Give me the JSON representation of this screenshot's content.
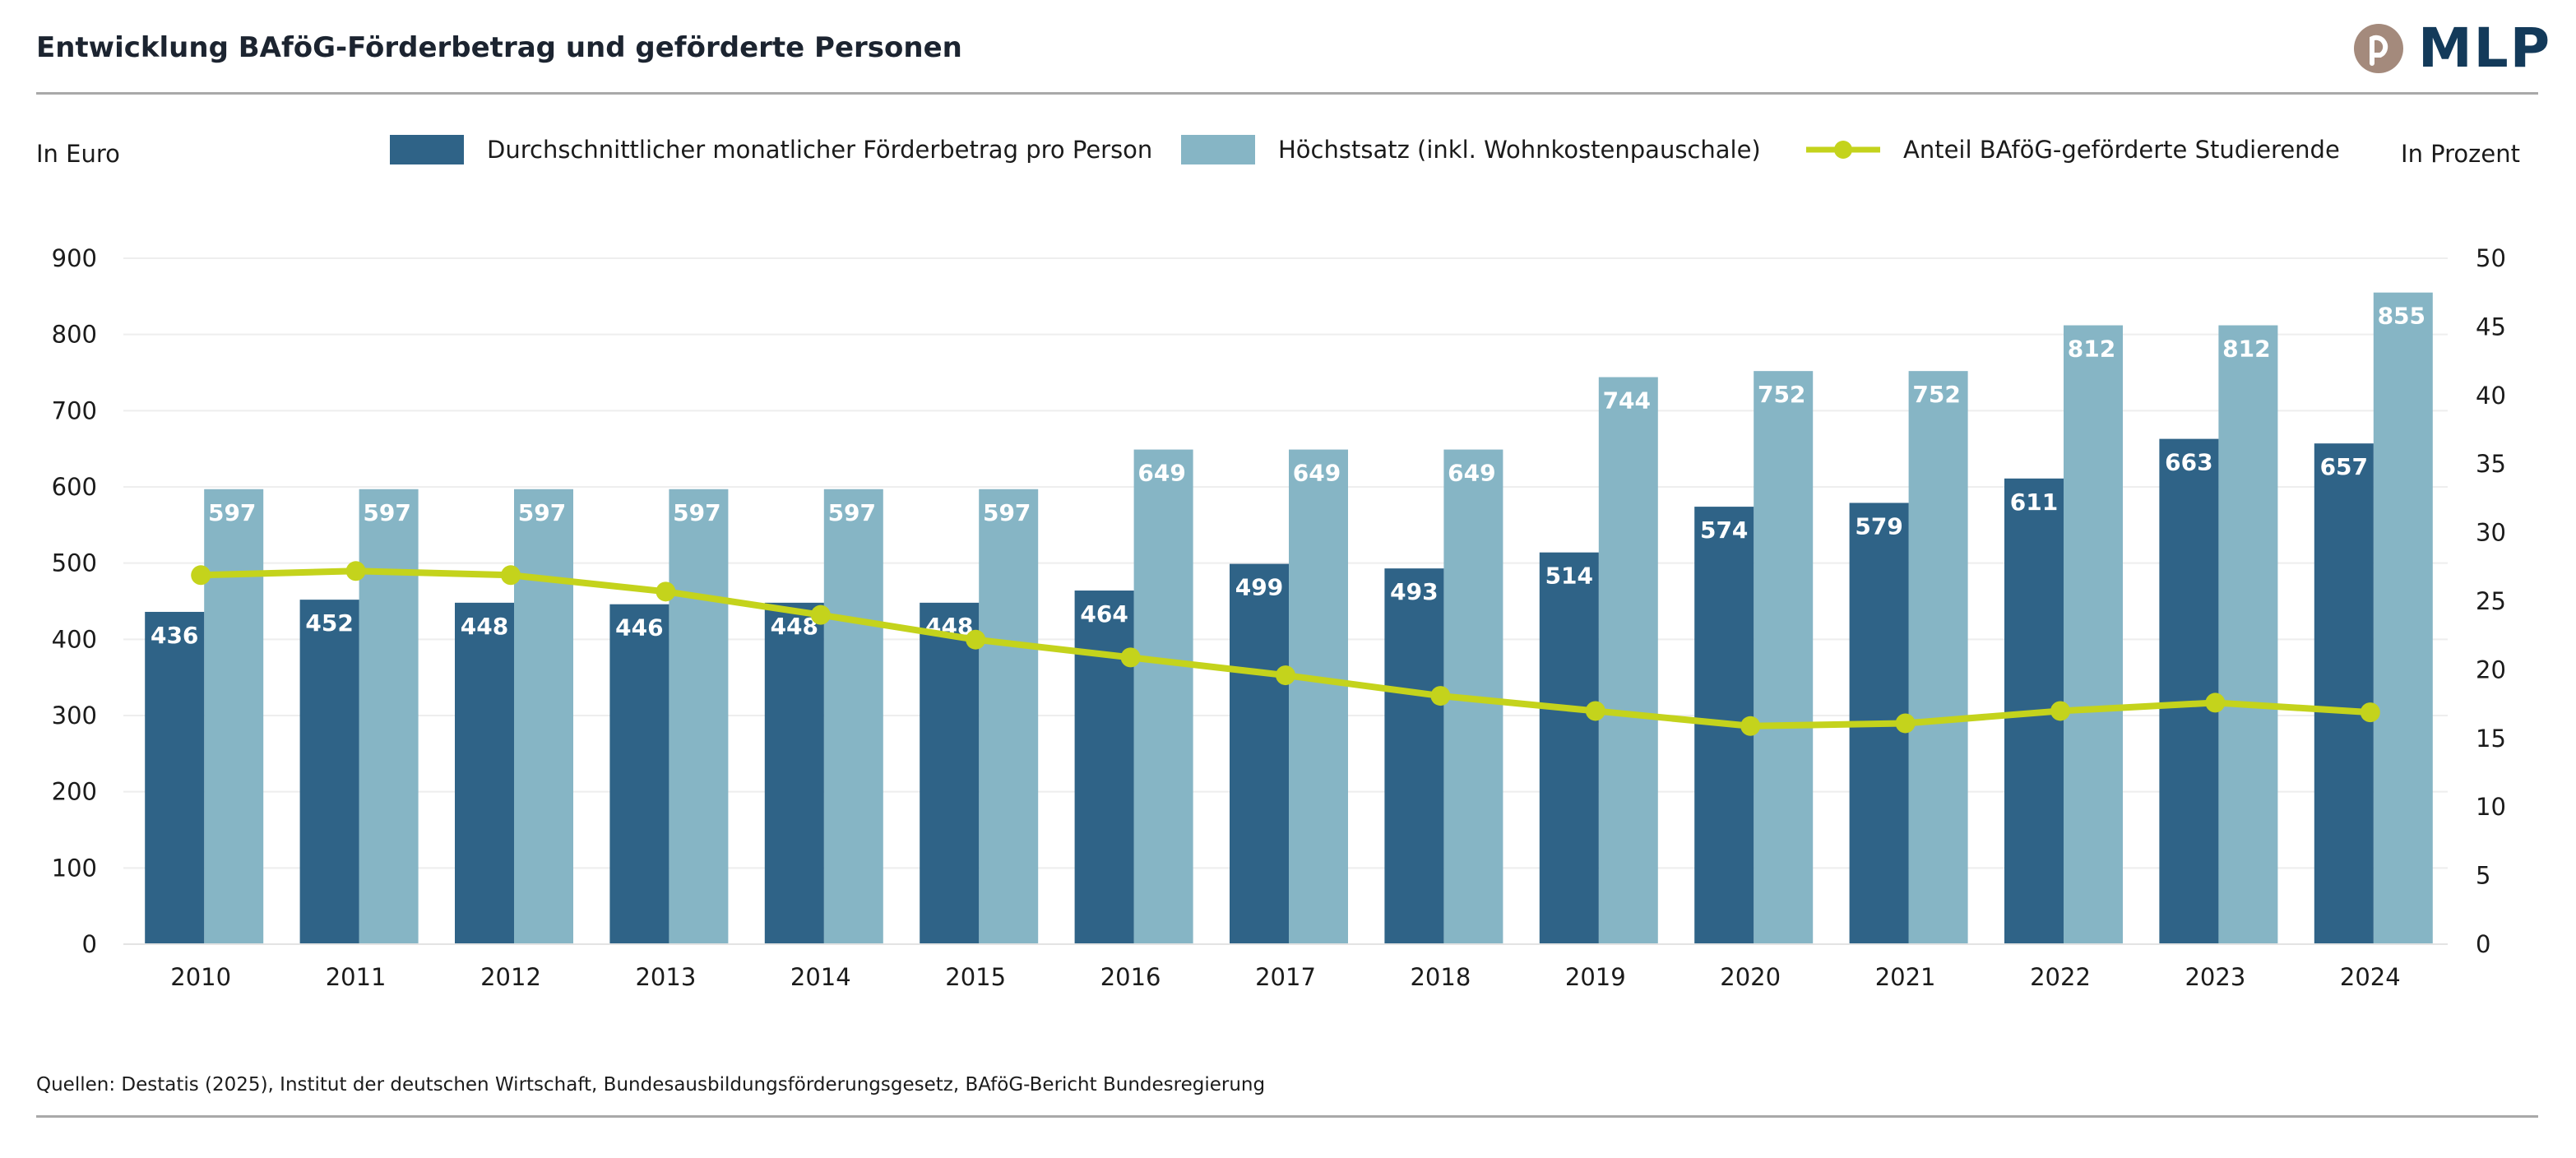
{
  "title": "Entwicklung BAföG-Förderbetrag und geförderte Personen",
  "logo": {
    "text": "MLP",
    "brand_color": "#133a5a",
    "mark_color": "#a48a7c"
  },
  "units": {
    "left": "In Euro",
    "right": "In Prozent"
  },
  "legend": [
    {
      "label": "Durchschnittlicher monatlicher Förderbetrag pro Person",
      "color": "#2f6387",
      "kind": "bar"
    },
    {
      "label": "Höchstsatz (inkl. Wohnkostenpauschale)",
      "color": "#86b5c5",
      "kind": "bar"
    },
    {
      "label": "Anteil BAföG-geförderte Studierende",
      "color": "#c4d31c",
      "kind": "line"
    }
  ],
  "source": "Quellen: Destatis (2025), Institut der deutschen Wirtschaft, Bundesausbildungsförderungsgesetz, BAföG-Bericht Bundesregierung",
  "chart_data": {
    "type": "bar",
    "categories": [
      "2010",
      "2011",
      "2012",
      "2013",
      "2014",
      "2015",
      "2016",
      "2017",
      "2018",
      "2019",
      "2020",
      "2021",
      "2022",
      "2023",
      "2024"
    ],
    "series": [
      {
        "name": "Durchschnittlicher monatlicher Förderbetrag pro Person",
        "axis": "left",
        "type": "bar",
        "color": "#2f6387",
        "values": [
          436,
          452,
          448,
          446,
          448,
          448,
          464,
          499,
          493,
          514,
          574,
          579,
          611,
          663,
          657
        ]
      },
      {
        "name": "Höchstsatz (inkl. Wohnkostenpauschale)",
        "axis": "left",
        "type": "bar",
        "color": "#86b5c5",
        "values": [
          597,
          597,
          597,
          597,
          597,
          597,
          649,
          649,
          649,
          744,
          752,
          752,
          812,
          812,
          855
        ]
      },
      {
        "name": "Anteil BAföG-geförderte Studierende",
        "axis": "right",
        "type": "line",
        "color": "#c4d31c",
        "values": [
          26.9,
          27.2,
          26.9,
          25.7,
          24.0,
          22.2,
          20.9,
          19.6,
          18.1,
          17.0,
          15.9,
          16.1,
          17.0,
          17.6,
          16.9
        ]
      }
    ],
    "y_left": {
      "min": 0,
      "max": 900,
      "ticks": [
        "0",
        "100",
        "200",
        "300",
        "400",
        "500",
        "600",
        "700",
        "800",
        "900"
      ],
      "label": "In Euro"
    },
    "y_right": {
      "min": 0,
      "max": 50,
      "ticks": [
        "0",
        "5",
        "10",
        "15",
        "20",
        "25",
        "30",
        "35",
        "40",
        "45",
        "50"
      ],
      "label": "In Prozent"
    },
    "grid": true,
    "legend_position": "top"
  }
}
